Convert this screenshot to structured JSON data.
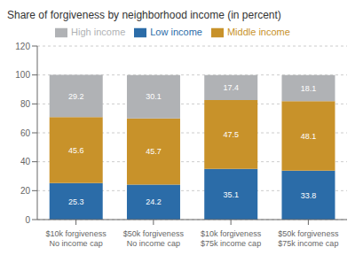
{
  "chart_data": {
    "type": "bar",
    "title": "Share of forgiveness by neighborhood income (in percent)",
    "categories": [
      "$10k forgiveness\nNo income cap",
      "$50k forgiveness\nNo income cap",
      "$10k forgiveness\n$75k income cap",
      "$50k forgiveness\n$75k income cap"
    ],
    "series": [
      {
        "name": "Low income",
        "color": "#2b6ca8",
        "values": [
          25.3,
          24.2,
          35.1,
          33.8
        ]
      },
      {
        "name": "Middle income",
        "color": "#c8922a",
        "values": [
          45.6,
          45.7,
          47.5,
          48.1
        ]
      },
      {
        "name": "High income",
        "color": "#b0b2b5",
        "values": [
          29.2,
          30.1,
          17.4,
          18.1
        ]
      }
    ],
    "ylim": [
      0,
      120
    ],
    "yticks": [
      0,
      20,
      40,
      60,
      80,
      100,
      120
    ],
    "grid": true,
    "stacked": true,
    "data_labels": true,
    "legend": "top"
  }
}
